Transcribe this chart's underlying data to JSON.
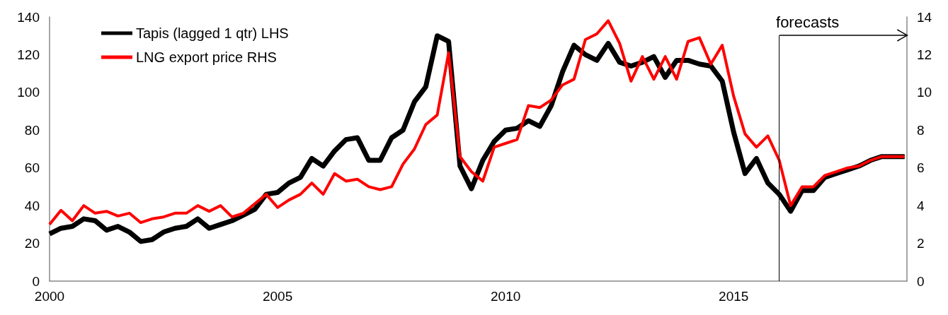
{
  "chart_data": {
    "type": "line",
    "x": [
      2000,
      2000.25,
      2000.5,
      2000.75,
      2001,
      2001.25,
      2001.5,
      2001.75,
      2002,
      2002.25,
      2002.5,
      2002.75,
      2003,
      2003.25,
      2003.5,
      2003.75,
      2004,
      2004.25,
      2004.5,
      2004.75,
      2005,
      2005.25,
      2005.5,
      2005.75,
      2006,
      2006.25,
      2006.5,
      2006.75,
      2007,
      2007.25,
      2007.5,
      2007.75,
      2008,
      2008.25,
      2008.5,
      2008.75,
      2009,
      2009.25,
      2009.5,
      2009.75,
      2010,
      2010.25,
      2010.5,
      2010.75,
      2011,
      2011.25,
      2011.5,
      2011.75,
      2012,
      2012.25,
      2012.5,
      2012.75,
      2013,
      2013.25,
      2013.5,
      2013.75,
      2014,
      2014.25,
      2014.5,
      2014.75,
      2015,
      2015.25,
      2015.5,
      2015.75,
      2016,
      2016.25,
      2016.5,
      2016.75,
      2017,
      2017.25,
      2017.5,
      2017.75,
      2018,
      2018.25,
      2018.5,
      2018.75
    ],
    "series": [
      {
        "name": "Tapis (lagged 1 qtr) LHS",
        "color": "#000000",
        "values": [
          25,
          28,
          29,
          33,
          32,
          27,
          29,
          26,
          21,
          22,
          26,
          28,
          29,
          33,
          28,
          30,
          32,
          35,
          38,
          46,
          47,
          52,
          55,
          65,
          61,
          69,
          75,
          76,
          64,
          64,
          76,
          80,
          95,
          103,
          130,
          127,
          61,
          49,
          64,
          74,
          80,
          81,
          85,
          82,
          93,
          111,
          125,
          120,
          117,
          126,
          116,
          114,
          116,
          119,
          108,
          117,
          117,
          115,
          114,
          106,
          79,
          57,
          65,
          52,
          46,
          37,
          48,
          48,
          55,
          57,
          59,
          61,
          64,
          66,
          66,
          66
        ]
      },
      {
        "name": "LNG export price RHS",
        "color": "#ff0000",
        "axis": "y2",
        "values": [
          3.0,
          3.75,
          3.2,
          4.0,
          3.6,
          3.7,
          3.45,
          3.6,
          3.1,
          3.3,
          3.4,
          3.6,
          3.6,
          4.0,
          3.7,
          4.0,
          3.4,
          3.6,
          4.1,
          4.6,
          3.9,
          4.3,
          4.6,
          5.2,
          4.6,
          5.7,
          5.3,
          5.4,
          5.0,
          4.85,
          5.0,
          6.2,
          7.0,
          8.3,
          8.8,
          12.1,
          6.6,
          5.8,
          5.3,
          7.1,
          7.3,
          7.5,
          9.3,
          9.2,
          9.6,
          10.4,
          10.7,
          12.8,
          13.1,
          13.8,
          12.6,
          10.6,
          11.9,
          10.7,
          11.9,
          10.7,
          12.7,
          12.9,
          11.5,
          12.5,
          9.8,
          7.8,
          7.1,
          7.7,
          6.4,
          4.0,
          5.0,
          5.0,
          5.6,
          5.8,
          6.0,
          6.1,
          6.4,
          6.6,
          6.6,
          6.6
        ]
      }
    ],
    "xlim": [
      2000,
      2018.8
    ],
    "xticks": [
      2000,
      2005,
      2010,
      2015
    ],
    "ylim": [
      0,
      140
    ],
    "yticks": [
      0,
      20,
      40,
      60,
      80,
      100,
      120,
      140
    ],
    "y2lim": [
      0,
      14
    ],
    "y2ticks": [
      0,
      2,
      4,
      6,
      8,
      10,
      12,
      14
    ],
    "ref_lines": [
      {
        "axis": "x",
        "value": 2016,
        "label": "forecasts",
        "color": "#000000"
      }
    ],
    "legend": "top left",
    "grid": false,
    "marker": "none",
    "line_style": "solid"
  }
}
